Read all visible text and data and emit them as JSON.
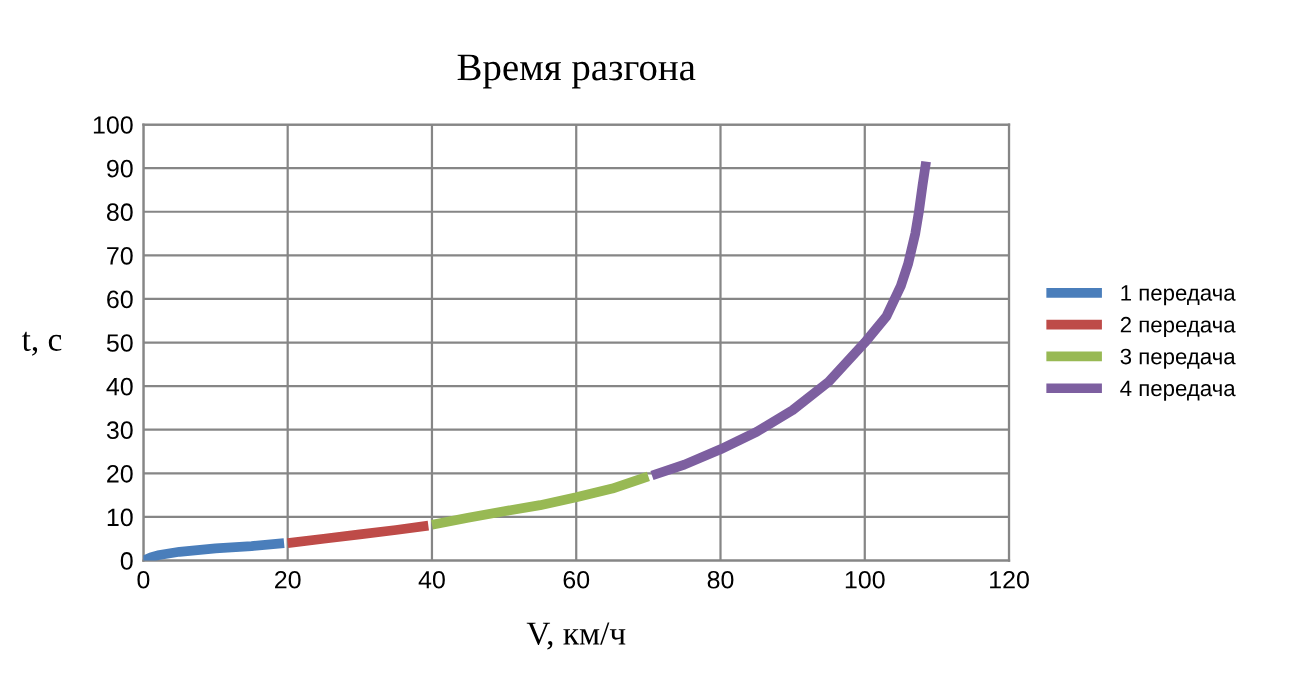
{
  "chart_data": {
    "type": "line",
    "title": "Время разгона",
    "xlabel": "V, км/ч",
    "ylabel": "t, с",
    "xlim": [
      0,
      120
    ],
    "xticks": [
      0,
      20,
      40,
      60,
      80,
      100,
      120
    ],
    "ylim": [
      0,
      100
    ],
    "yticks": [
      0,
      10,
      20,
      30,
      40,
      50,
      60,
      70,
      80,
      90,
      100
    ],
    "grid": true,
    "legend": "right",
    "marker": "none",
    "line_style": "solid",
    "series": [
      {
        "name": "1 передача",
        "color": "#4a7ebb",
        "x": [
          0,
          1,
          2,
          5,
          10,
          15,
          19.5
        ],
        "values": [
          0,
          0.7,
          1.2,
          2.0,
          2.8,
          3.3,
          4.0
        ]
      },
      {
        "name": "2 передача",
        "color": "#be4b48",
        "x": [
          20,
          25,
          30,
          35,
          39.5
        ],
        "values": [
          4.0,
          5.0,
          6.0,
          7.0,
          8.0
        ]
      },
      {
        "name": "3 передача",
        "color": "#98b954",
        "x": [
          40,
          45,
          50,
          55,
          60,
          65,
          70
        ],
        "values": [
          8.2,
          9.8,
          11.3,
          12.7,
          14.5,
          16.5,
          19.3
        ]
      },
      {
        "name": "4 передача",
        "color": "#7d5fa0",
        "x": [
          70.5,
          75,
          80,
          85,
          90,
          95,
          100,
          103,
          105,
          106,
          107,
          107.5,
          108,
          108.5
        ],
        "values": [
          19.5,
          22,
          25.5,
          29.5,
          34.5,
          41,
          50,
          56,
          63,
          68,
          75,
          80,
          86,
          91.5
        ]
      }
    ]
  }
}
